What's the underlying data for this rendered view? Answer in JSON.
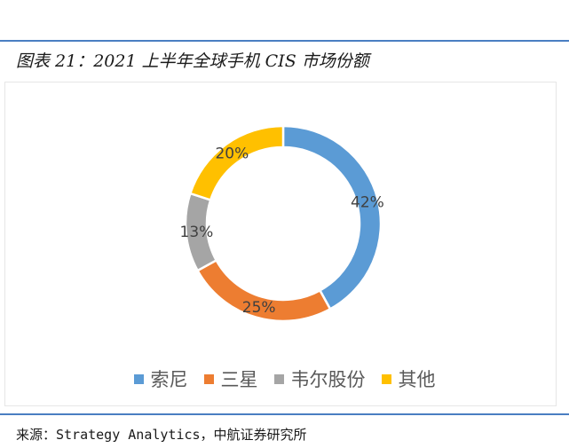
{
  "figure": {
    "title": "图表 21：2021 上半年全球手机 CIS 市场份额",
    "source": "来源：Strategy Analytics，中航证券研究所"
  },
  "chart_data": {
    "type": "pie",
    "variant": "donut",
    "title": "",
    "categories": [
      "索尼",
      "三星",
      "韦尔股份",
      "其他"
    ],
    "values": [
      42,
      25,
      13,
      20
    ],
    "labels": [
      "42%",
      "25%",
      "13%",
      "20%"
    ],
    "colors": [
      "#5b9bd5",
      "#ed7d31",
      "#a5a5a5",
      "#ffc000"
    ],
    "unit": "%",
    "legend_position": "bottom"
  }
}
